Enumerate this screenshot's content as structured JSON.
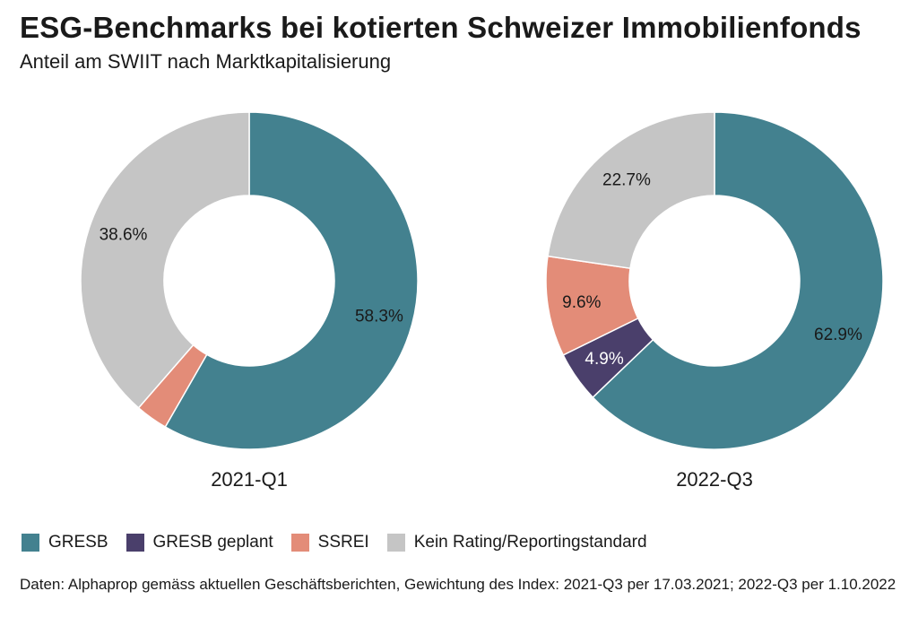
{
  "header": {
    "title": "ESG-Benchmarks bei kotierten Schweizer Immobilienfonds",
    "subtitle": "Anteil am SWIIT nach Marktkapitalisierung"
  },
  "chart_data": {
    "type": "pie",
    "variant": "donut",
    "categories": [
      "GRESB",
      "GRESB geplant",
      "SSREI",
      "Kein Rating/Reportingstandard"
    ],
    "colors": [
      "#43818f",
      "#4a3f6b",
      "#e38c78",
      "#c5c5c5"
    ],
    "charts": [
      {
        "name": "2021-Q1",
        "values": [
          58.3,
          0.0,
          3.1,
          38.6
        ],
        "labels": [
          "58.3%",
          "",
          "",
          "38.6%"
        ]
      },
      {
        "name": "2022-Q3",
        "values": [
          62.9,
          4.9,
          9.6,
          22.7
        ],
        "labels": [
          "62.9%",
          "4.9%",
          "9.6%",
          "22.7%"
        ]
      }
    ],
    "legend_placement": "bottom-left"
  },
  "footer": {
    "source": "Daten: Alphaprop gemäss aktuellen Geschäftsberichten, Gewichtung des Index: 2021-Q3 per 17.03.2021; 2022-Q3 per 1.10.2022"
  }
}
